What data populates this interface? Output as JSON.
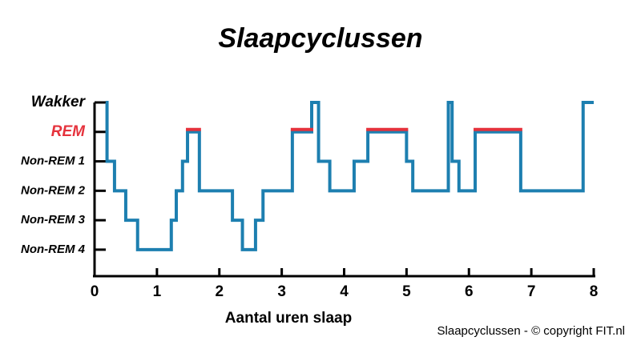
{
  "chart_data": {
    "type": "step",
    "title": "Slaapcyclussen",
    "x_label": "Aantal uren slaap",
    "footer": "Slaapcyclussen - © copyright FIT.nl",
    "xlim": [
      0,
      8
    ],
    "xticks": [
      0,
      1,
      2,
      3,
      4,
      5,
      6,
      7,
      8
    ],
    "ylim": [
      -0.9,
      5
    ],
    "yticks": [
      {
        "value": 0,
        "label": "Non-REM 4"
      },
      {
        "value": 1,
        "label": "Non-REM 3"
      },
      {
        "value": 2,
        "label": "Non-REM 2"
      },
      {
        "value": 3,
        "label": "Non-REM 1"
      },
      {
        "value": 4,
        "label": "REM",
        "color": "#e5323c"
      },
      {
        "value": 5,
        "label": "Wakker"
      }
    ],
    "highlight_value": 4,
    "highlight_color": "#e5323c",
    "series": [
      {
        "color": "#1d7fb0",
        "x": [
          0.18,
          0.2,
          0.32,
          0.5,
          0.69,
          1.23,
          1.31,
          1.41,
          1.49,
          1.68,
          2.21,
          2.37,
          2.58,
          2.7,
          3.17,
          3.48,
          3.59,
          3.77,
          4.16,
          4.38,
          5.0,
          5.1,
          5.67,
          5.73,
          5.84,
          6.1,
          6.83,
          7.83,
          8.0
        ],
        "values": [
          5,
          3,
          2,
          1,
          0,
          1,
          2,
          3,
          4,
          2,
          1,
          0,
          1,
          2,
          4,
          5,
          3,
          2,
          3,
          4,
          3,
          2,
          5,
          3,
          2,
          4,
          2,
          5,
          5
        ]
      }
    ]
  }
}
